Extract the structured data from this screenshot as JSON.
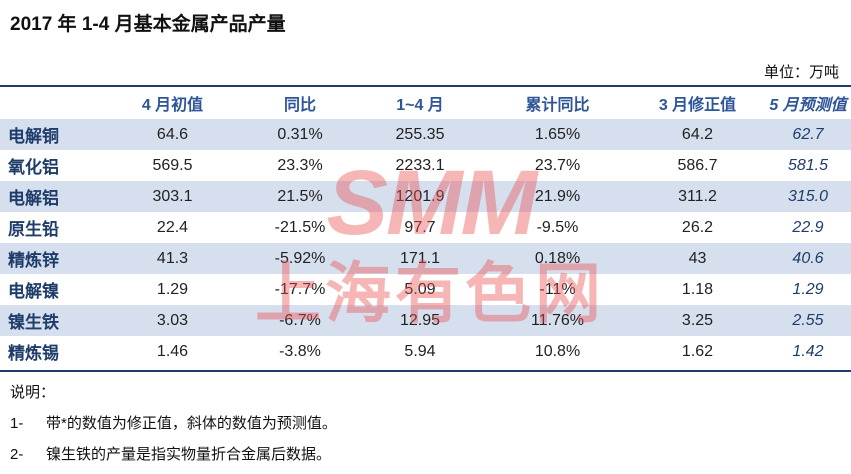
{
  "title": "2017 年 1-4 月基本金属产品产量",
  "unit": "单位：万吨",
  "table": {
    "headers": [
      "",
      "4 月初值",
      "同比",
      "1~4 月",
      "累计同比",
      "3 月修正值",
      "5 月预测值"
    ],
    "rows": [
      [
        "电解铜",
        "64.6",
        "0.31%",
        "255.35",
        "1.65%",
        "64.2",
        "62.7"
      ],
      [
        "氧化铝",
        "569.5",
        "23.3%",
        "2233.1",
        "23.7%",
        "586.7",
        "581.5"
      ],
      [
        "电解铝",
        "303.1",
        "21.5%",
        "1201.9",
        "21.9%",
        "311.2",
        "315.0"
      ],
      [
        "原生铅",
        "22.4",
        "-21.5%",
        "97.7",
        "-9.5%",
        "26.2",
        "22.9"
      ],
      [
        "精炼锌",
        "41.3",
        "-5.92%",
        "171.1",
        "0.18%",
        "43",
        "40.6"
      ],
      [
        "电解镍",
        "1.29",
        "-17.7%",
        "5.09",
        "-11%",
        "1.18",
        "1.29"
      ],
      [
        "镍生铁",
        "3.03",
        "-6.7%",
        "12.95",
        "11.76%",
        "3.25",
        "2.55"
      ],
      [
        "精炼锡",
        "1.46",
        "-3.8%",
        "5.94",
        "10.8%",
        "1.62",
        "1.42"
      ]
    ]
  },
  "notes": {
    "heading": "说明：",
    "items": [
      {
        "num": "1-",
        "text": "带*的数值为修正值，斜体的数值为预测值。"
      },
      {
        "num": "2-",
        "text": "镍生铁的产量是指实物量折合金属后数据。"
      }
    ]
  },
  "watermark": {
    "logo": "SMM",
    "text": "上海有色网"
  },
  "colors": {
    "header_text": "#2e5597",
    "row_shade": "#d5dfee",
    "rule": "#1f3d6b",
    "watermark": "#eb5050"
  }
}
